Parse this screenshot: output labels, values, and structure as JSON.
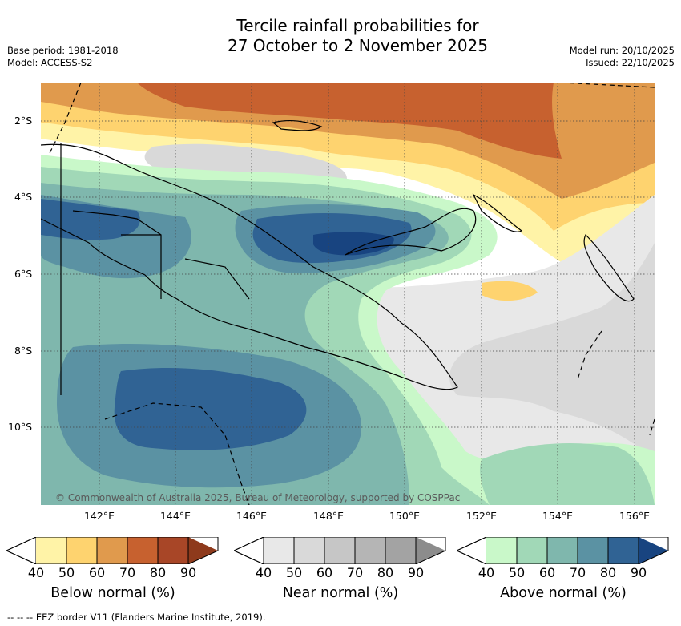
{
  "title_line1": "Tercile rainfall probabilities for",
  "title_line2": "27 October to 2 November 2025",
  "base_period": "Base period: 1981-2018",
  "model": "Model: ACCESS-S2",
  "model_run": "Model run: 20/10/2025",
  "issued": "Issued: 22/10/2025",
  "copyright": "© Commonwealth of Australia 2025, Bureau of Meteorology, supported by COSPPac",
  "longitudes": [
    "142°E",
    "144°E",
    "146°E",
    "148°E",
    "150°E",
    "152°E",
    "154°E",
    "156°E"
  ],
  "latitudes": [
    "2°S",
    "4°S",
    "6°S",
    "8°S",
    "10°S"
  ],
  "legends": [
    {
      "title": "Below normal (%)",
      "ticks": [
        "40",
        "50",
        "60",
        "70",
        "80",
        "90"
      ],
      "colors": [
        "#fff3a7",
        "#fed36f",
        "#e09a4d",
        "#c7612f",
        "#a84627",
        "#8e3a1c"
      ]
    },
    {
      "title": "Near normal (%)",
      "ticks": [
        "40",
        "50",
        "60",
        "70",
        "80",
        "90"
      ],
      "colors": [
        "#e8e8e8",
        "#d9d9d9",
        "#c6c6c6",
        "#b5b5b5",
        "#a3a3a3",
        "#8c8c8c"
      ]
    },
    {
      "title": "Above normal (%)",
      "ticks": [
        "40",
        "50",
        "60",
        "70",
        "80",
        "90"
      ],
      "colors": [
        "#c9f8c9",
        "#a1d8b7",
        "#7fb7ad",
        "#5b92a3",
        "#306394",
        "#184480"
      ]
    }
  ],
  "footnote": "-- -- -- EEZ border V11 (Flanders Marine Institute, 2019)."
}
